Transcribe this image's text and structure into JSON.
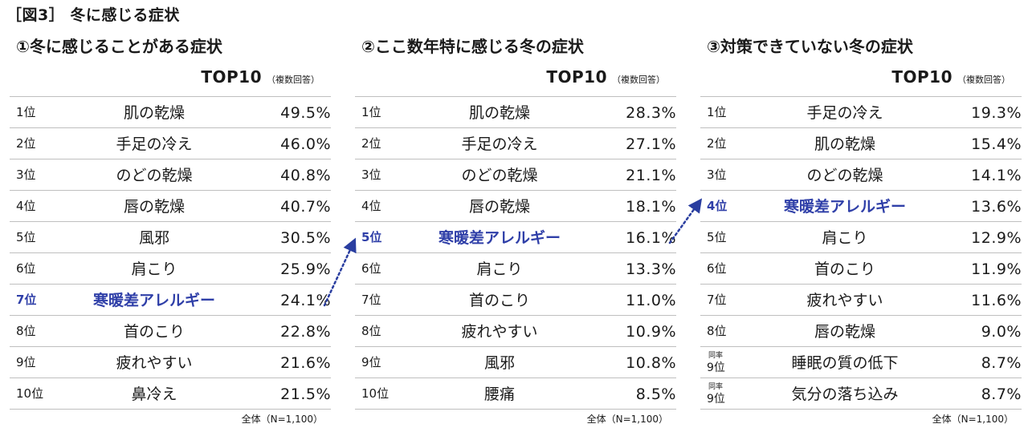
{
  "figure_title": "［図3］ 冬に感じる症状",
  "chart_data": [
    {
      "type": "table",
      "title": "①冬に感じることがある症状",
      "subtitle": "TOP10",
      "note": "（複数回答）",
      "footnote": "全体（N=1,100）",
      "unit": "%",
      "rows": [
        {
          "rank": "1位",
          "label": "肌の乾燥",
          "value": 49.5,
          "value_text": "49.5%"
        },
        {
          "rank": "2位",
          "label": "手足の冷え",
          "value": 46.0,
          "value_text": "46.0%"
        },
        {
          "rank": "3位",
          "label": "のどの乾燥",
          "value": 40.8,
          "value_text": "40.8%"
        },
        {
          "rank": "4位",
          "label": "唇の乾燥",
          "value": 40.7,
          "value_text": "40.7%"
        },
        {
          "rank": "5位",
          "label": "風邪",
          "value": 30.5,
          "value_text": "30.5%"
        },
        {
          "rank": "6位",
          "label": "肩こり",
          "value": 25.9,
          "value_text": "25.9%"
        },
        {
          "rank": "7位",
          "label": "寒暖差アレルギー",
          "value": 24.1,
          "value_text": "24.1%",
          "highlight": true
        },
        {
          "rank": "8位",
          "label": "首のこり",
          "value": 22.8,
          "value_text": "22.8%"
        },
        {
          "rank": "9位",
          "label": "疲れやすい",
          "value": 21.6,
          "value_text": "21.6%"
        },
        {
          "rank": "10位",
          "label": "鼻冷え",
          "value": 21.5,
          "value_text": "21.5%"
        }
      ]
    },
    {
      "type": "table",
      "title": "②ここ数年特に感じる冬の症状",
      "subtitle": "TOP10",
      "note": "（複数回答）",
      "footnote": "全体（N=1,100）",
      "unit": "%",
      "rows": [
        {
          "rank": "1位",
          "label": "肌の乾燥",
          "value": 28.3,
          "value_text": "28.3%"
        },
        {
          "rank": "2位",
          "label": "手足の冷え",
          "value": 27.1,
          "value_text": "27.1%"
        },
        {
          "rank": "3位",
          "label": "のどの乾燥",
          "value": 21.1,
          "value_text": "21.1%"
        },
        {
          "rank": "4位",
          "label": "唇の乾燥",
          "value": 18.1,
          "value_text": "18.1%"
        },
        {
          "rank": "5位",
          "label": "寒暖差アレルギー",
          "value": 16.1,
          "value_text": "16.1%",
          "highlight": true
        },
        {
          "rank": "6位",
          "label": "肩こり",
          "value": 13.3,
          "value_text": "13.3%"
        },
        {
          "rank": "7位",
          "label": "首のこり",
          "value": 11.0,
          "value_text": "11.0%"
        },
        {
          "rank": "8位",
          "label": "疲れやすい",
          "value": 10.9,
          "value_text": "10.9%"
        },
        {
          "rank": "9位",
          "label": "風邪",
          "value": 10.8,
          "value_text": "10.8%"
        },
        {
          "rank": "10位",
          "label": "腰痛",
          "value": 8.5,
          "value_text": "8.5%"
        }
      ]
    },
    {
      "type": "table",
      "title": "③対策できていない冬の症状",
      "subtitle": "TOP10",
      "note": "（複数回答）",
      "footnote": "全体（N=1,100）",
      "unit": "%",
      "rows": [
        {
          "rank": "1位",
          "label": "手足の冷え",
          "value": 19.3,
          "value_text": "19.3%"
        },
        {
          "rank": "2位",
          "label": "肌の乾燥",
          "value": 15.4,
          "value_text": "15.4%"
        },
        {
          "rank": "3位",
          "label": "のどの乾燥",
          "value": 14.1,
          "value_text": "14.1%"
        },
        {
          "rank": "4位",
          "label": "寒暖差アレルギー",
          "value": 13.6,
          "value_text": "13.6%",
          "highlight": true
        },
        {
          "rank": "5位",
          "label": "肩こり",
          "value": 12.9,
          "value_text": "12.9%"
        },
        {
          "rank": "6位",
          "label": "首のこり",
          "value": 11.9,
          "value_text": "11.9%"
        },
        {
          "rank": "7位",
          "label": "疲れやすい",
          "value": 11.6,
          "value_text": "11.6%"
        },
        {
          "rank": "8位",
          "label": "唇の乾燥",
          "value": 9.0,
          "value_text": "9.0%"
        },
        {
          "rank": "9位",
          "tie_note": "同率",
          "label": "睡眠の質の低下",
          "value": 8.7,
          "value_text": "8.7%"
        },
        {
          "rank": "9位",
          "tie_note": "同率",
          "label": "気分の落ち込み",
          "value": 8.7,
          "value_text": "8.7%"
        }
      ]
    }
  ],
  "colors": {
    "highlight": "#2f3fa8",
    "border": "#bfbfbf",
    "arrow": "#2a3ea0"
  }
}
